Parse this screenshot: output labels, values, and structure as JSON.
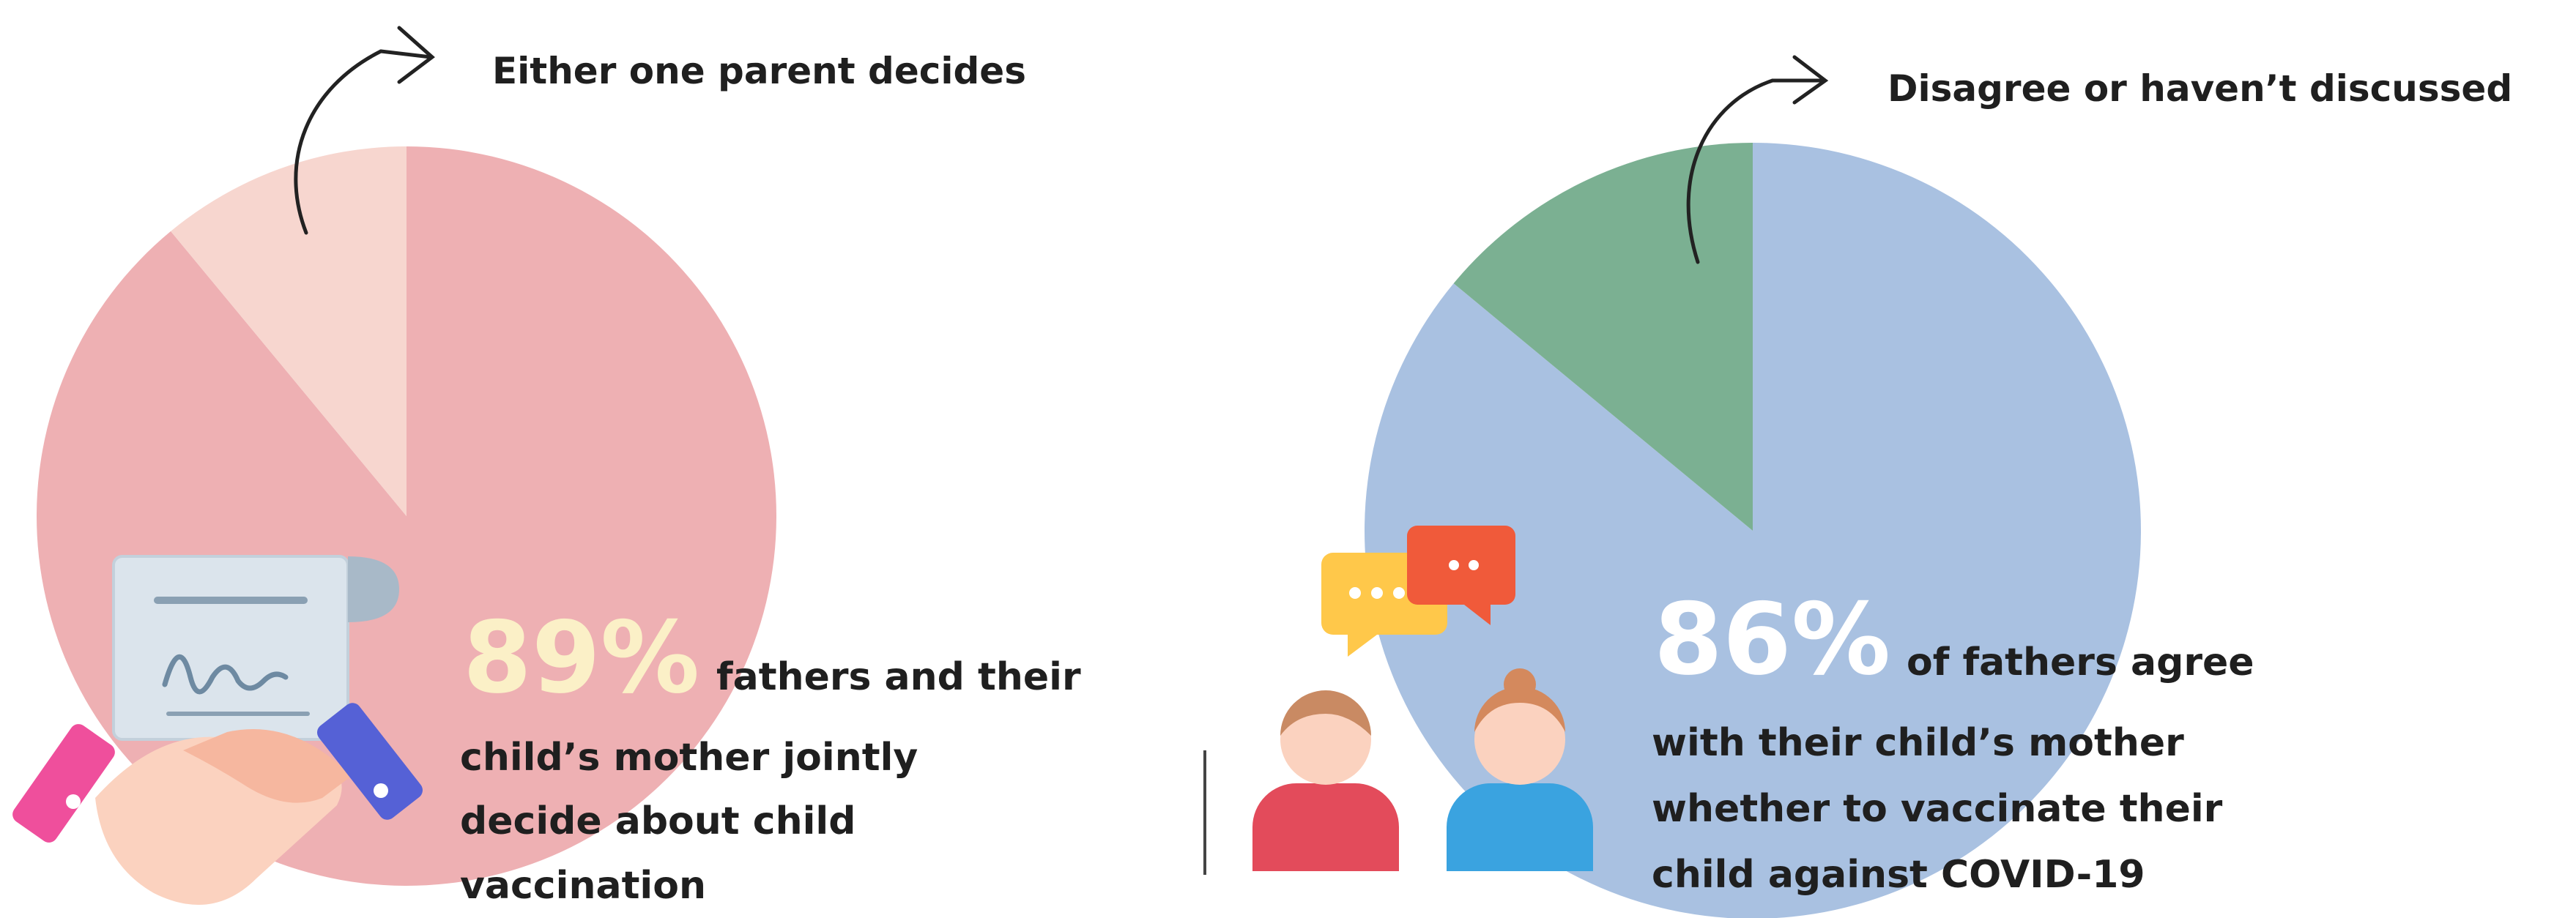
{
  "colors": {
    "pink_main": "#eeb0b3",
    "pink_light": "#f7d6cf",
    "blue_main": "#a9c1e1",
    "green": "#7bb092",
    "pct_left_text": "#fbf0c7",
    "pct_right_text": "#ffffff"
  },
  "icons": {
    "left": "handshake-agreement-icon",
    "right": "two-people-discussion-icon"
  },
  "chart_data": [
    {
      "type": "pie",
      "slices": [
        {
          "label": "",
          "value": 89,
          "color": "#eeb0b3"
        },
        {
          "label": "Either one parent decides",
          "value": 11,
          "color": "#f7d6cf"
        }
      ],
      "highlight": {
        "value_label": "89%",
        "text_lines": [
          "fathers and their",
          "child’s mother jointly",
          "decide about child",
          "vaccination"
        ]
      }
    },
    {
      "type": "pie",
      "slices": [
        {
          "label": "",
          "value": 86,
          "color": "#a9c1e1"
        },
        {
          "label": "Disagree or haven’t discussed",
          "value": 14,
          "color": "#7bb092"
        }
      ],
      "highlight": {
        "value_label": "86%",
        "text_lines": [
          "of fathers agree",
          "with their child’s mother",
          "whether to vaccinate their",
          "child against COVID-19"
        ]
      }
    }
  ]
}
